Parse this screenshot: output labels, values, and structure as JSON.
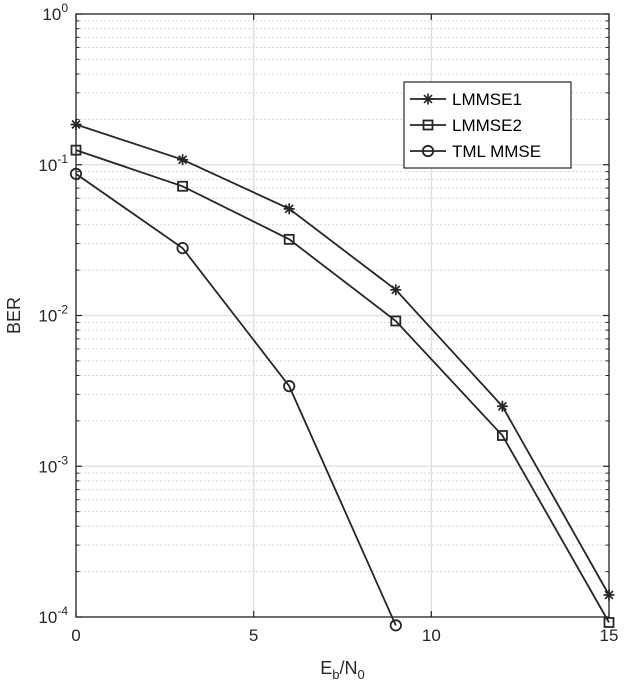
{
  "chart_data": {
    "type": "line",
    "xlabel": "E_b/N_0",
    "ylabel": "BER",
    "y_scale": "log",
    "xlim": [
      0,
      15
    ],
    "ylim": [
      0.0001,
      1
    ],
    "x_ticks": [
      0,
      5,
      10,
      15
    ],
    "x_tick_labels": [
      "0",
      "5",
      "10",
      "15"
    ],
    "y_ticks": [
      0.0001,
      0.001,
      0.01,
      0.1,
      1
    ],
    "y_tick_labels": [
      {
        "base": "10",
        "exp": "-4"
      },
      {
        "base": "10",
        "exp": "-3"
      },
      {
        "base": "10",
        "exp": "-2"
      },
      {
        "base": "10",
        "exp": "-1"
      },
      {
        "base": "10",
        "exp": "0"
      }
    ],
    "grid": true,
    "minor_grid": true,
    "legend_position": "top-right",
    "series": [
      {
        "name": "LMMSE1",
        "marker": "asterisk",
        "color": "#262626",
        "x": [
          0,
          3,
          6,
          9,
          12,
          15
        ],
        "values": [
          0.185,
          0.108,
          0.051,
          0.0148,
          0.0025,
          0.00014
        ]
      },
      {
        "name": "LMMSE2",
        "marker": "square",
        "color": "#262626",
        "x": [
          0,
          3,
          6,
          9,
          12,
          15
        ],
        "values": [
          0.125,
          0.072,
          0.032,
          0.0092,
          0.0016,
          9.2e-05
        ]
      },
      {
        "name": "TML MMSE",
        "marker": "circle",
        "color": "#262626",
        "x": [
          0,
          3,
          6,
          9
        ],
        "values": [
          0.087,
          0.028,
          0.0034,
          8.8e-05
        ]
      }
    ]
  }
}
